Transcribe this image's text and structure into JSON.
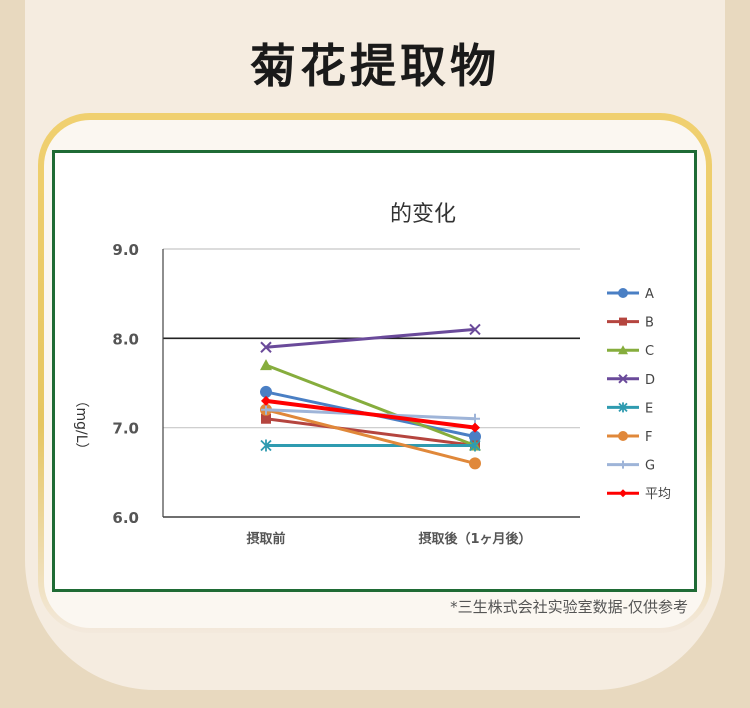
{
  "page": {
    "title": "菊花提取物",
    "footnote": "*三生株式会社实验室数据-仅供参考"
  },
  "chart_data": {
    "type": "line",
    "title": "的变化",
    "ylabel": "（mg/L）",
    "xlabel": "",
    "categories": [
      "摂取前",
      "摂取後（1ヶ月後）"
    ],
    "ylim": [
      6.0,
      9.0
    ],
    "yticks": [
      6.0,
      7.0,
      8.0,
      9.0
    ],
    "yticks_labels": [
      "6.0",
      "7.0",
      "8.0",
      "9.0"
    ],
    "grid": true,
    "legend_position": "right",
    "series": [
      {
        "name": "A",
        "values": [
          7.4,
          6.9
        ],
        "color": "#4a7fc4",
        "marker": "circle"
      },
      {
        "name": "B",
        "values": [
          7.1,
          6.8
        ],
        "color": "#b5453f",
        "marker": "square"
      },
      {
        "name": "C",
        "values": [
          7.7,
          6.8
        ],
        "color": "#86ad3d",
        "marker": "triangle"
      },
      {
        "name": "D",
        "values": [
          7.9,
          8.1
        ],
        "color": "#6a4a9a",
        "marker": "x"
      },
      {
        "name": "E",
        "values": [
          6.8,
          6.8
        ],
        "color": "#2f9bb0",
        "marker": "star"
      },
      {
        "name": "F",
        "values": [
          7.2,
          6.6
        ],
        "color": "#e0883a",
        "marker": "circle"
      },
      {
        "name": "G",
        "values": [
          7.2,
          7.1
        ],
        "color": "#9eb4d8",
        "marker": "plus"
      },
      {
        "name": "平均",
        "values": [
          7.3,
          7.0
        ],
        "color": "#ff0000",
        "marker": "diamond"
      }
    ]
  }
}
